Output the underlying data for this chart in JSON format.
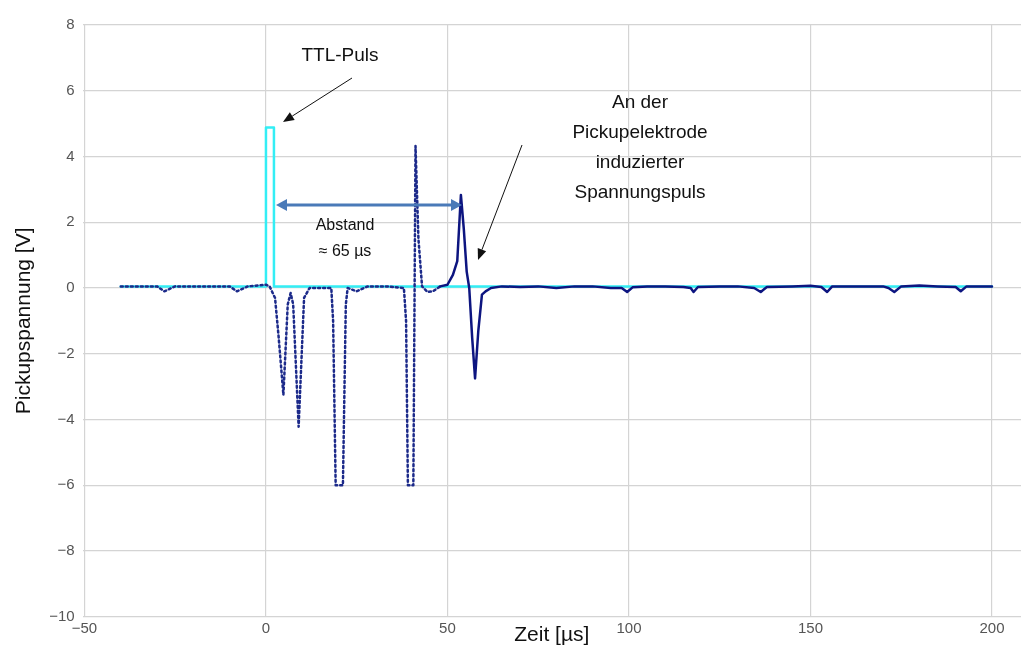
{
  "chart_data": {
    "type": "line",
    "xlabel": "Zeit [µs]",
    "ylabel": "Pickupspannung [V]",
    "xlim": [
      -50.5,
      208
    ],
    "ylim": [
      -10,
      8
    ],
    "xticks": [
      {
        "value": -50,
        "label": "−50"
      },
      0,
      50,
      100,
      150,
      200
    ],
    "yticks": [
      {
        "value": -10,
        "label": "−10"
      },
      {
        "value": -8,
        "label": "−8"
      },
      {
        "value": -6,
        "label": "−6"
      },
      {
        "value": -4,
        "label": "−4"
      },
      {
        "value": -2,
        "label": "−2"
      },
      0,
      2,
      4,
      6,
      8
    ],
    "grid": true,
    "legend": false,
    "marker": "none",
    "series": [
      {
        "color": "#0d1580",
        "line_style": "solid",
        "x": [
          48,
          50,
          51.5,
          52.7,
          53.7,
          54.5,
          55.3,
          56,
          56.8,
          57.6,
          58.5,
          59.5,
          60.5,
          62,
          65,
          70,
          75,
          80,
          85,
          90,
          95,
          98,
          99.5,
          101,
          105,
          110,
          115,
          117,
          117.8,
          119,
          125,
          130,
          134.5,
          136.3,
          138,
          145,
          150,
          153,
          154.6,
          156,
          160,
          165,
          170,
          171.5,
          173.1,
          175,
          180,
          185,
          190,
          191.4,
          193,
          200
        ],
        "values": [
          0.05,
          0.1,
          0.4,
          0.82,
          2.83,
          1.8,
          0.5,
          0,
          -1.5,
          -2.75,
          -1.3,
          -0.2,
          -0.1,
          0,
          0.05,
          0.03,
          0.05,
          0,
          0.05,
          0.05,
          0,
          0,
          -0.12,
          0.02,
          0.05,
          0.05,
          0.03,
          0,
          -0.12,
          0.03,
          0.05,
          0.05,
          0,
          -0.12,
          0.03,
          0.05,
          0.07,
          0.03,
          -0.12,
          0.05,
          0.05,
          0.05,
          0.05,
          0,
          -0.12,
          0.05,
          0.08,
          0.05,
          0.03,
          -0.1,
          0.05,
          0.05
        ]
      },
      {
        "color": "#1c2a8a",
        "line_style": "dotted",
        "x": [
          -40,
          -35,
          -30,
          -28,
          -25,
          -20,
          -15,
          -10,
          -8,
          -5,
          0,
          1,
          2.5,
          3.5,
          4.8,
          6,
          6.8,
          7.5,
          9,
          10.5,
          12,
          15,
          18,
          18.5,
          19.2,
          21.2,
          22,
          22.5,
          25,
          28,
          30,
          33,
          38,
          38.6,
          39.1,
          40.6,
          41.2,
          42,
          43,
          44.5,
          46,
          48
        ],
        "values": [
          0.05,
          0.05,
          0.05,
          -0.1,
          0.05,
          0.05,
          0.05,
          0.05,
          -0.1,
          0.05,
          0.1,
          0.05,
          -0.3,
          -1.5,
          -3.25,
          -0.5,
          -0.15,
          -0.5,
          -4.22,
          -0.3,
          0,
          0,
          0,
          -1,
          -6,
          -6,
          -0.5,
          0,
          -0.1,
          0.05,
          0.05,
          0.05,
          0,
          -1,
          -6,
          -6,
          4.32,
          1.5,
          0.05,
          -0.12,
          -0.1,
          0.05
        ]
      },
      {
        "color": "#33eef5",
        "line_style": "solid",
        "x": [
          -40,
          0,
          0,
          2.2,
          2.2,
          200
        ],
        "values": [
          0.05,
          0.05,
          4.88,
          4.88,
          0.05,
          0.05
        ]
      }
    ],
    "annotations": [
      "TTL-Puls",
      "Abstand\n≈ 65 µs",
      "An der\nPickupelektrode\ninduzierter\nSpannungspuls"
    ]
  }
}
